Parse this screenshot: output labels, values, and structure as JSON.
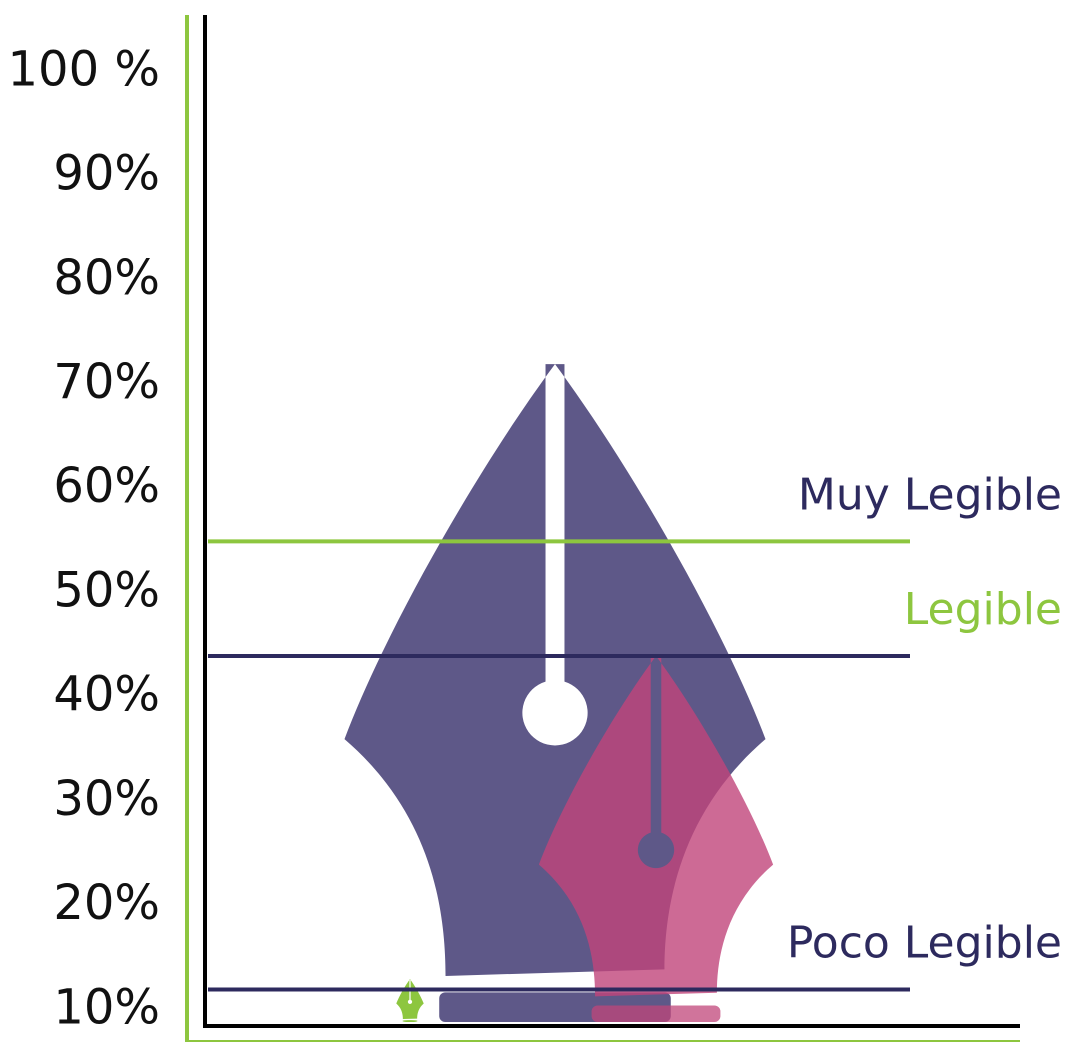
{
  "chart_data": {
    "type": "pen-nib",
    "values": [
      13,
      72,
      44
    ],
    "colors": [
      "#8dc63f",
      "#5e5888",
      "#c0457a"
    ],
    "ylim": [
      8.5,
      105.5
    ],
    "yticks": [
      {
        "value": 10,
        "label": "10%"
      },
      {
        "value": 20,
        "label": "20%"
      },
      {
        "value": 30,
        "label": "30%"
      },
      {
        "value": 40,
        "label": "40%"
      },
      {
        "value": 50,
        "label": "50%"
      },
      {
        "value": 60,
        "label": "60%"
      },
      {
        "value": 70,
        "label": "70%"
      },
      {
        "value": 80,
        "label": "80%"
      },
      {
        "value": 90,
        "label": "90%"
      },
      {
        "value": 100,
        "label": "100 %"
      }
    ],
    "reference_lines": [
      {
        "label": "Muy Legible",
        "value": 55,
        "color": "#8dc63f",
        "label_color": "#2d2a5e"
      },
      {
        "label": "Legible",
        "value": 44,
        "color": "#2d2a5e",
        "label_color": "#8dc63f"
      },
      {
        "label": "Poco Legible",
        "value": 12,
        "color": "#2d2a5e",
        "label_color": "#2d2a5e"
      }
    ]
  }
}
